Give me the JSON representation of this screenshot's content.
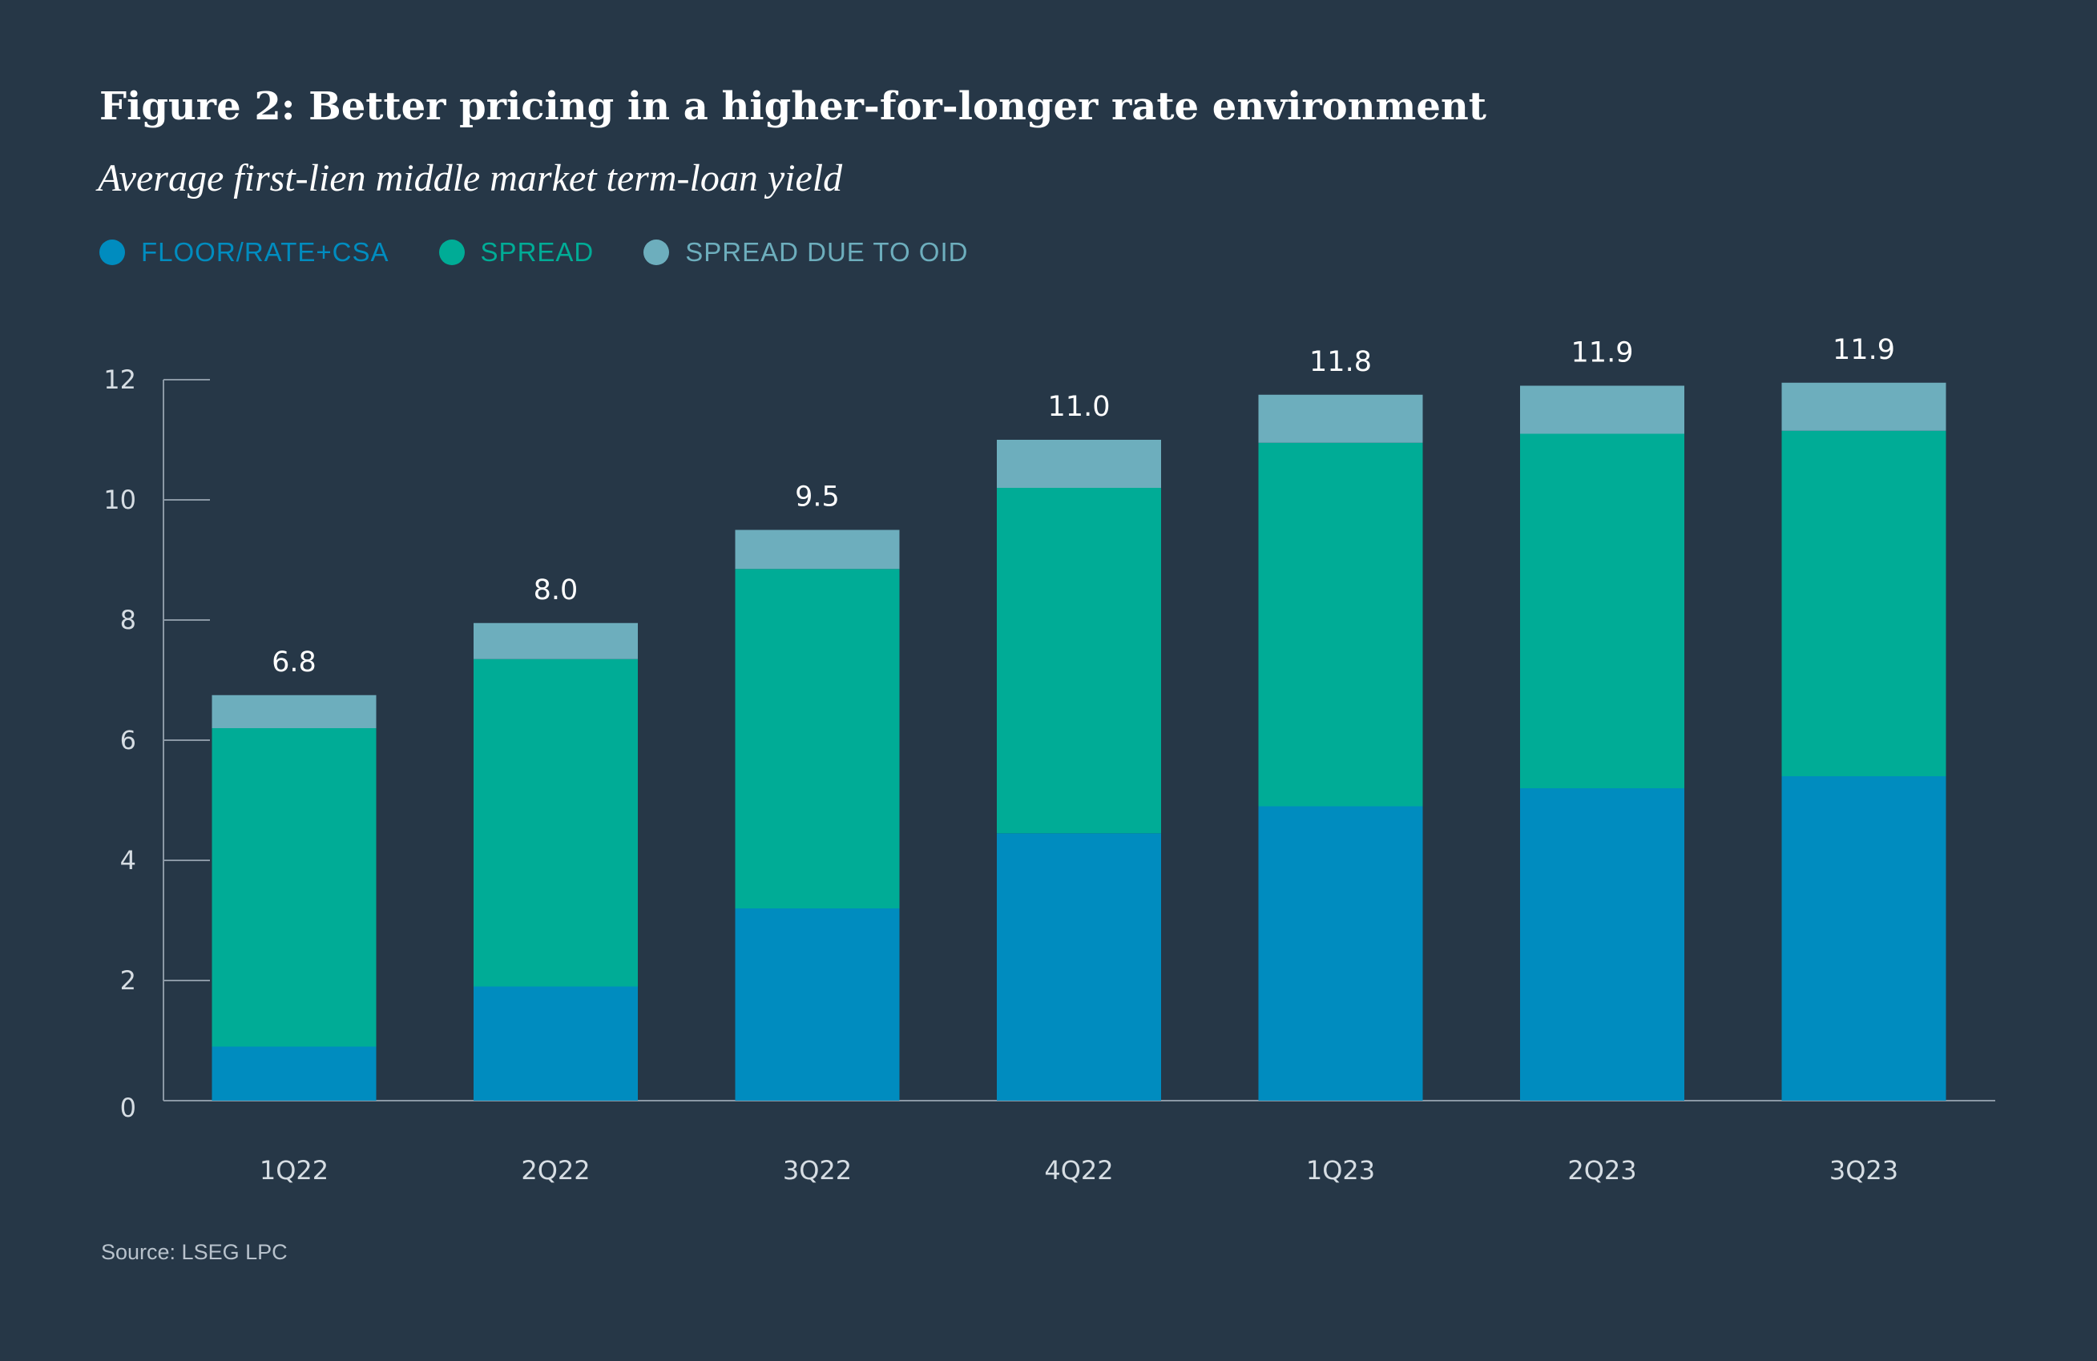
{
  "chart_data": {
    "type": "bar",
    "stacked": true,
    "title": "Figure 2: Better pricing in a higher-for-longer rate environment",
    "subtitle": "Average first-lien middle market term-loan yield",
    "categories": [
      "1Q22",
      "2Q22",
      "3Q22",
      "4Q22",
      "1Q23",
      "2Q23",
      "3Q23"
    ],
    "series": [
      {
        "name": "FLOOR/RATE+CSA",
        "color": "#008cbf",
        "values": [
          0.9,
          1.9,
          3.2,
          4.45,
          4.9,
          5.2,
          5.4
        ]
      },
      {
        "name": "SPREAD",
        "color": "#00ac96",
        "values": [
          5.3,
          5.45,
          5.65,
          5.75,
          6.05,
          5.9,
          5.75
        ]
      },
      {
        "name": "SPREAD DUE TO OID",
        "color": "#6daebd",
        "values": [
          0.55,
          0.6,
          0.65,
          0.8,
          0.8,
          0.8,
          0.8
        ]
      }
    ],
    "totals": [
      "6.8",
      "8.0",
      "9.5",
      "11.0",
      "11.8",
      "11.9",
      "11.9"
    ],
    "ylim": [
      0,
      12
    ],
    "yticks": [
      0,
      2,
      4,
      6,
      8,
      10,
      12
    ],
    "xlabel": "",
    "ylabel": "",
    "legend_position": "top-left",
    "grid": false
  },
  "source": "Source: LSEG LPC",
  "colors": {
    "background": "#263747",
    "axis": "#8b98a5",
    "text": "#ffffff"
  }
}
